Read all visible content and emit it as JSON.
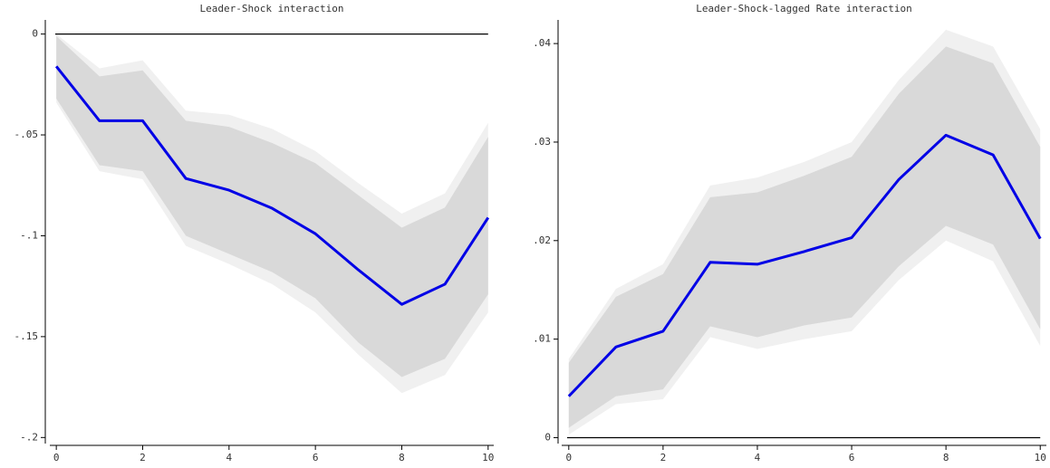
{
  "chart_data": [
    {
      "type": "line",
      "title": "Leader-Shock interaction",
      "x": [
        0,
        1,
        2,
        3,
        4,
        5,
        6,
        7,
        8,
        9,
        10
      ],
      "xlim": [
        -0.15,
        10.13
      ],
      "xticks": [
        0,
        2,
        4,
        6,
        8,
        10
      ],
      "ylim": [
        -0.203,
        0.007
      ],
      "yticks": [
        {
          "value": 0,
          "label": "0"
        },
        {
          "value": -0.05,
          "label": "-.05"
        },
        {
          "value": -0.1,
          "label": "-.1"
        },
        {
          "value": -0.15,
          "label": "-.15"
        },
        {
          "value": -0.2,
          "label": "-.2"
        }
      ],
      "reference_line": 0,
      "bands": [
        {
          "color": "#f0f0f0",
          "upper": [
            0,
            -0.017,
            -0.013,
            -0.038,
            -0.04,
            -0.047,
            -0.058,
            -0.074,
            -0.089,
            -0.079,
            -0.044
          ],
          "lower": [
            -0.034,
            -0.068,
            -0.072,
            -0.105,
            -0.114,
            -0.124,
            -0.138,
            -0.159,
            -0.178,
            -0.169,
            -0.138
          ]
        },
        {
          "color": "#d9d9d9",
          "upper": [
            -0.001,
            -0.021,
            -0.018,
            -0.043,
            -0.046,
            -0.054,
            -0.064,
            -0.08,
            -0.096,
            -0.086,
            -0.051
          ],
          "lower": [
            -0.032,
            -0.065,
            -0.068,
            -0.1,
            -0.109,
            -0.118,
            -0.131,
            -0.153,
            -0.17,
            -0.161,
            -0.129
          ]
        }
      ],
      "series": [
        {
          "color": "#0000e6",
          "values": [
            -0.016,
            -0.043,
            -0.043,
            -0.0716,
            -0.0774,
            -0.0864,
            -0.099,
            -0.117,
            -0.134,
            -0.124,
            -0.091
          ]
        }
      ]
    },
    {
      "type": "line",
      "title": "Leader-Shock-lagged Rate interaction",
      "x": [
        0,
        1,
        2,
        3,
        4,
        5,
        6,
        7,
        8,
        9,
        10
      ],
      "xlim": [
        -0.15,
        10.13
      ],
      "xticks": [
        0,
        2,
        4,
        6,
        8,
        10
      ],
      "ylim": [
        -0.0006,
        0.0424
      ],
      "yticks": [
        {
          "value": 0,
          "label": "0"
        },
        {
          "value": 0.01,
          "label": ".01"
        },
        {
          "value": 0.02,
          "label": ".02"
        },
        {
          "value": 0.03,
          "label": ".03"
        },
        {
          "value": 0.04,
          "label": ".04"
        }
      ],
      "reference_line": 0,
      "bands": [
        {
          "color": "#f0f0f0",
          "upper": [
            0.008,
            0.0151,
            0.0176,
            0.0256,
            0.0264,
            0.028,
            0.03,
            0.0363,
            0.0414,
            0.0397,
            0.0313
          ],
          "lower": [
            0.0003,
            0.0034,
            0.0039,
            0.0102,
            0.009,
            0.01,
            0.0108,
            0.016,
            0.02,
            0.0179,
            0.0093
          ]
        },
        {
          "color": "#d9d9d9",
          "upper": [
            0.0076,
            0.0143,
            0.0166,
            0.0244,
            0.0249,
            0.0266,
            0.0285,
            0.0349,
            0.0397,
            0.038,
            0.0295
          ],
          "lower": [
            0.001,
            0.0042,
            0.0049,
            0.0113,
            0.0102,
            0.0114,
            0.0122,
            0.0174,
            0.0215,
            0.0196,
            0.011
          ]
        }
      ],
      "series": [
        {
          "color": "#0000e6",
          "values": [
            0.0042,
            0.0092,
            0.0108,
            0.0178,
            0.0176,
            0.0189,
            0.0203,
            0.0262,
            0.0307,
            0.0287,
            0.0202
          ]
        }
      ]
    }
  ]
}
